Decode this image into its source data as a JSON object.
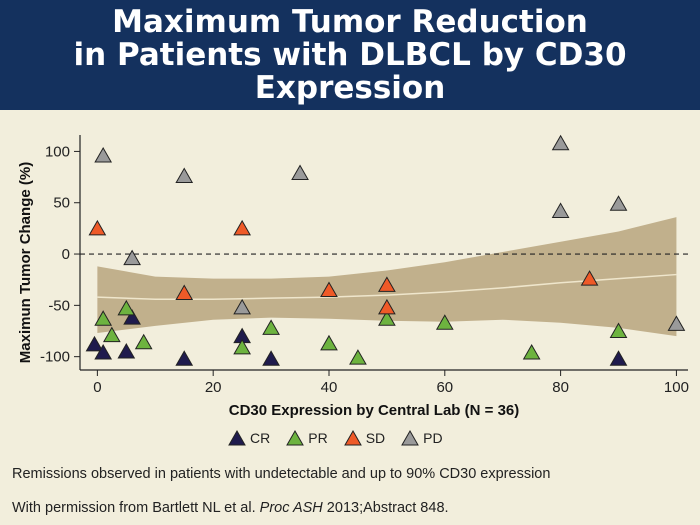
{
  "header": {
    "title_lines": [
      "Maximum Tumor Reduction",
      "in Patients with DLBCL by CD30",
      "Expression"
    ]
  },
  "chart_data": {
    "type": "scatter",
    "xlabel": "CD30 Expression by Central Lab (N = 36)",
    "ylabel": "Maximun Tumor Change (%)",
    "xlim": [
      -3,
      102
    ],
    "ylim": [
      -113,
      116
    ],
    "xticks": [
      0,
      20,
      40,
      60,
      80,
      100
    ],
    "yticks": [
      -100,
      -50,
      0,
      50,
      100
    ],
    "reference_line": 0,
    "grid": false,
    "legend_position": "bottom",
    "series": [
      {
        "name": "CR",
        "color": "#1f1b4d",
        "points": [
          [
            -0.5,
            -88
          ],
          [
            1,
            -96
          ],
          [
            5,
            -95
          ],
          [
            6,
            -62
          ],
          [
            15,
            -102
          ],
          [
            25,
            -80
          ],
          [
            30,
            -102
          ],
          [
            90,
            -102
          ]
        ]
      },
      {
        "name": "PR",
        "color": "#6db33f",
        "points": [
          [
            1,
            -63
          ],
          [
            2.5,
            -79
          ],
          [
            5,
            -53
          ],
          [
            8,
            -86
          ],
          [
            25,
            -91
          ],
          [
            30,
            -72
          ],
          [
            40,
            -87
          ],
          [
            45,
            -101
          ],
          [
            50,
            -63
          ],
          [
            60,
            -67
          ],
          [
            75,
            -96
          ],
          [
            90,
            -75
          ]
        ]
      },
      {
        "name": "SD",
        "color": "#ef5a28",
        "points": [
          [
            0,
            25
          ],
          [
            15,
            -38
          ],
          [
            25,
            25
          ],
          [
            40,
            -35
          ],
          [
            50,
            -30
          ],
          [
            50,
            -52
          ],
          [
            85,
            -24
          ]
        ]
      },
      {
        "name": "PD",
        "color": "#9a9a9a",
        "points": [
          [
            1,
            96
          ],
          [
            6,
            -4
          ],
          [
            15,
            76
          ],
          [
            25,
            -52
          ],
          [
            35,
            79
          ],
          [
            80,
            108
          ],
          [
            80,
            42
          ],
          [
            90,
            49
          ],
          [
            100,
            -68
          ]
        ]
      }
    ],
    "confidence_band": {
      "color": "#b8a57e",
      "x": [
        0,
        10,
        20,
        30,
        40,
        50,
        60,
        70,
        80,
        90,
        100
      ],
      "lower": [
        -77,
        -70,
        -64,
        -62,
        -63,
        -65,
        -66,
        -64,
        -67,
        -72,
        -80
      ],
      "upper": [
        -12,
        -22,
        -24,
        -24,
        -22,
        -16,
        -8,
        2,
        12,
        22,
        36
      ],
      "fit": [
        -42,
        -44,
        -44,
        -43,
        -42,
        -40,
        -37,
        -33,
        -28,
        -24,
        -20
      ]
    }
  },
  "legend": {
    "items": [
      {
        "label": "CR",
        "color": "#1f1b4d"
      },
      {
        "label": "PR",
        "color": "#6db33f"
      },
      {
        "label": "SD",
        "color": "#ef5a28"
      },
      {
        "label": "PD",
        "color": "#9a9a9a"
      }
    ]
  },
  "footnotes": {
    "line1": "Remissions observed in patients with undetectable and up to 90% CD30 expression",
    "line2_prefix": "With permission from Bartlett NL et al. ",
    "line2_journal": "Proc ASH",
    "line2_suffix": " 2013;Abstract 848."
  }
}
